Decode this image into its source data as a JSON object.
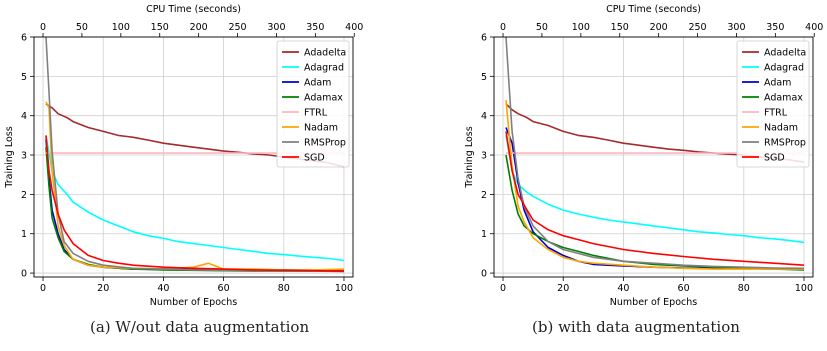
{
  "chart_data": [
    {
      "type": "line",
      "panel": "a",
      "xlabel": "Number of Epochs",
      "ylabel": "Training Loss",
      "top_xlabel": "CPU Time (seconds)",
      "xlim": [
        -3,
        103
      ],
      "ylim": [
        -0.1,
        6
      ],
      "top_xlim": [
        -11.6,
        398.4
      ],
      "xticks": [
        0,
        20,
        40,
        60,
        80,
        100
      ],
      "yticks": [
        0,
        1,
        2,
        3,
        4,
        5,
        6
      ],
      "top_xticks": [
        0,
        50,
        100,
        150,
        200,
        250,
        300,
        350,
        400
      ],
      "grid": true,
      "legend_position": "top-right",
      "series": [
        {
          "name": "Adadelta",
          "color": "#a52a2a",
          "x": [
            1,
            3,
            5,
            8,
            10,
            15,
            20,
            25,
            30,
            35,
            40,
            45,
            50,
            55,
            60,
            65,
            70,
            75,
            80,
            85,
            90,
            95,
            100
          ],
          "y": [
            4.3,
            4.2,
            4.05,
            3.95,
            3.85,
            3.7,
            3.6,
            3.5,
            3.45,
            3.38,
            3.3,
            3.25,
            3.2,
            3.15,
            3.1,
            3.07,
            3.03,
            3.0,
            2.95,
            2.9,
            2.85,
            2.8,
            2.7
          ]
        },
        {
          "name": "Adagrad",
          "color": "#00ffff",
          "x": [
            1,
            3,
            5,
            8,
            10,
            15,
            20,
            25,
            30,
            35,
            40,
            45,
            50,
            55,
            60,
            65,
            70,
            75,
            80,
            85,
            90,
            95,
            100
          ],
          "y": [
            3.5,
            2.6,
            2.25,
            2.0,
            1.8,
            1.55,
            1.35,
            1.2,
            1.05,
            0.95,
            0.88,
            0.8,
            0.75,
            0.7,
            0.65,
            0.6,
            0.55,
            0.5,
            0.47,
            0.43,
            0.4,
            0.37,
            0.32
          ]
        },
        {
          "name": "Adam",
          "color": "#0000cd",
          "x": [
            1,
            2,
            3,
            5,
            7,
            10,
            15,
            20,
            30,
            40,
            50,
            60,
            70,
            80,
            90,
            100
          ],
          "y": [
            3.4,
            2.4,
            1.6,
            1.0,
            0.6,
            0.35,
            0.2,
            0.15,
            0.1,
            0.1,
            0.1,
            0.08,
            0.08,
            0.08,
            0.07,
            0.06
          ]
        },
        {
          "name": "Adamax",
          "color": "#008000",
          "x": [
            1,
            2,
            3,
            5,
            7,
            10,
            15,
            20,
            30,
            40,
            50,
            60,
            70,
            80,
            90,
            100
          ],
          "y": [
            3.2,
            2.2,
            1.4,
            0.9,
            0.55,
            0.35,
            0.22,
            0.15,
            0.1,
            0.08,
            0.07,
            0.06,
            0.05,
            0.05,
            0.05,
            0.04
          ]
        },
        {
          "name": "FTRL",
          "color": "#ffb6c1",
          "x": [
            1,
            100
          ],
          "y": [
            3.05,
            3.05
          ]
        },
        {
          "name": "Nadam",
          "color": "#ffa500",
          "x": [
            1,
            2,
            3,
            5,
            7,
            10,
            15,
            20,
            30,
            40,
            50,
            55,
            60,
            70,
            80,
            90,
            100
          ],
          "y": [
            4.35,
            4.2,
            2.6,
            1.2,
            0.7,
            0.35,
            0.2,
            0.15,
            0.12,
            0.1,
            0.15,
            0.25,
            0.1,
            0.1,
            0.08,
            0.08,
            0.1
          ]
        },
        {
          "name": "RMSProp",
          "color": "#808080",
          "x": [
            1,
            2,
            3,
            5,
            7,
            10,
            15,
            20,
            30,
            40,
            50,
            60,
            70,
            80,
            90,
            100
          ],
          "y": [
            6.0,
            4.6,
            3.1,
            1.5,
            0.8,
            0.5,
            0.3,
            0.2,
            0.12,
            0.1,
            0.08,
            0.07,
            0.06,
            0.06,
            0.05,
            0.05
          ]
        },
        {
          "name": "SGD",
          "color": "#ff0000",
          "x": [
            1,
            2,
            3,
            5,
            7,
            10,
            15,
            20,
            25,
            30,
            40,
            50,
            60,
            70,
            80,
            90,
            100
          ],
          "y": [
            3.5,
            2.6,
            2.1,
            1.5,
            1.1,
            0.75,
            0.45,
            0.32,
            0.25,
            0.2,
            0.15,
            0.12,
            0.1,
            0.08,
            0.07,
            0.06,
            0.05
          ]
        }
      ]
    },
    {
      "type": "line",
      "panel": "b",
      "xlabel": "Number of Epochs",
      "ylabel": "Training Loss",
      "top_xlabel": "CPU Time (seconds)",
      "xlim": [
        -3,
        103
      ],
      "ylim": [
        -0.1,
        6
      ],
      "top_xlim": [
        -11.6,
        398.4
      ],
      "xticks": [
        0,
        20,
        40,
        60,
        80,
        100
      ],
      "yticks": [
        0,
        1,
        2,
        3,
        4,
        5,
        6
      ],
      "top_xticks": [
        0,
        50,
        100,
        150,
        200,
        250,
        300,
        350,
        400
      ],
      "grid": true,
      "legend_position": "top-right",
      "series": [
        {
          "name": "Adadelta",
          "color": "#a52a2a",
          "x": [
            1,
            3,
            5,
            8,
            10,
            15,
            20,
            25,
            30,
            35,
            40,
            45,
            50,
            55,
            60,
            65,
            70,
            75,
            80,
            85,
            90,
            95,
            100
          ],
          "y": [
            4.3,
            4.15,
            4.05,
            3.95,
            3.85,
            3.75,
            3.6,
            3.5,
            3.45,
            3.38,
            3.3,
            3.25,
            3.2,
            3.15,
            3.12,
            3.08,
            3.05,
            3.02,
            3.0,
            2.95,
            2.92,
            2.88,
            2.82
          ]
        },
        {
          "name": "Adagrad",
          "color": "#00ffff",
          "x": [
            1,
            3,
            5,
            8,
            10,
            15,
            20,
            25,
            30,
            35,
            40,
            45,
            50,
            55,
            60,
            65,
            70,
            75,
            80,
            85,
            90,
            95,
            100
          ],
          "y": [
            3.5,
            2.6,
            2.25,
            2.05,
            1.95,
            1.75,
            1.6,
            1.5,
            1.42,
            1.35,
            1.3,
            1.25,
            1.2,
            1.15,
            1.1,
            1.05,
            1.02,
            0.98,
            0.95,
            0.9,
            0.87,
            0.83,
            0.78
          ]
        },
        {
          "name": "Adam",
          "color": "#0000cd",
          "x": [
            1,
            3,
            5,
            7,
            10,
            15,
            20,
            25,
            30,
            40,
            50,
            60,
            70,
            80,
            90,
            100
          ],
          "y": [
            3.7,
            3.3,
            2.3,
            1.6,
            1.05,
            0.65,
            0.45,
            0.3,
            0.22,
            0.18,
            0.15,
            0.13,
            0.12,
            0.12,
            0.12,
            0.12
          ]
        },
        {
          "name": "Adamax",
          "color": "#008000",
          "x": [
            1,
            3,
            5,
            7,
            10,
            15,
            20,
            25,
            30,
            40,
            50,
            60,
            70,
            80,
            90,
            100
          ],
          "y": [
            3.0,
            2.1,
            1.5,
            1.2,
            1.0,
            0.8,
            0.65,
            0.55,
            0.45,
            0.3,
            0.22,
            0.18,
            0.15,
            0.12,
            0.1,
            0.08
          ]
        },
        {
          "name": "FTRL",
          "color": "#ffb6c1",
          "x": [
            1,
            100
          ],
          "y": [
            3.05,
            3.05
          ]
        },
        {
          "name": "Nadam",
          "color": "#ffa500",
          "x": [
            1,
            3,
            5,
            7,
            10,
            15,
            20,
            25,
            30,
            40,
            50,
            60,
            70,
            80,
            90,
            100
          ],
          "y": [
            4.4,
            2.7,
            1.7,
            1.3,
            0.9,
            0.6,
            0.4,
            0.3,
            0.25,
            0.2,
            0.15,
            0.12,
            0.1,
            0.1,
            0.1,
            0.1
          ]
        },
        {
          "name": "RMSProp",
          "color": "#808080",
          "x": [
            1,
            2,
            3,
            5,
            7,
            10,
            15,
            20,
            30,
            40,
            50,
            60,
            70,
            80,
            90,
            100
          ],
          "y": [
            6.0,
            4.8,
            3.6,
            2.4,
            1.7,
            1.2,
            0.8,
            0.6,
            0.4,
            0.3,
            0.25,
            0.2,
            0.17,
            0.15,
            0.13,
            0.12
          ]
        },
        {
          "name": "SGD",
          "color": "#ff0000",
          "x": [
            1,
            3,
            5,
            8,
            10,
            15,
            20,
            25,
            30,
            40,
            50,
            60,
            70,
            80,
            90,
            100
          ],
          "y": [
            3.6,
            2.6,
            2.0,
            1.6,
            1.35,
            1.1,
            0.95,
            0.85,
            0.75,
            0.6,
            0.5,
            0.42,
            0.35,
            0.3,
            0.25,
            0.2
          ]
        }
      ]
    }
  ],
  "captions": {
    "a": "(a) W/out data augmentation",
    "b": "(b) with data augmentation"
  }
}
